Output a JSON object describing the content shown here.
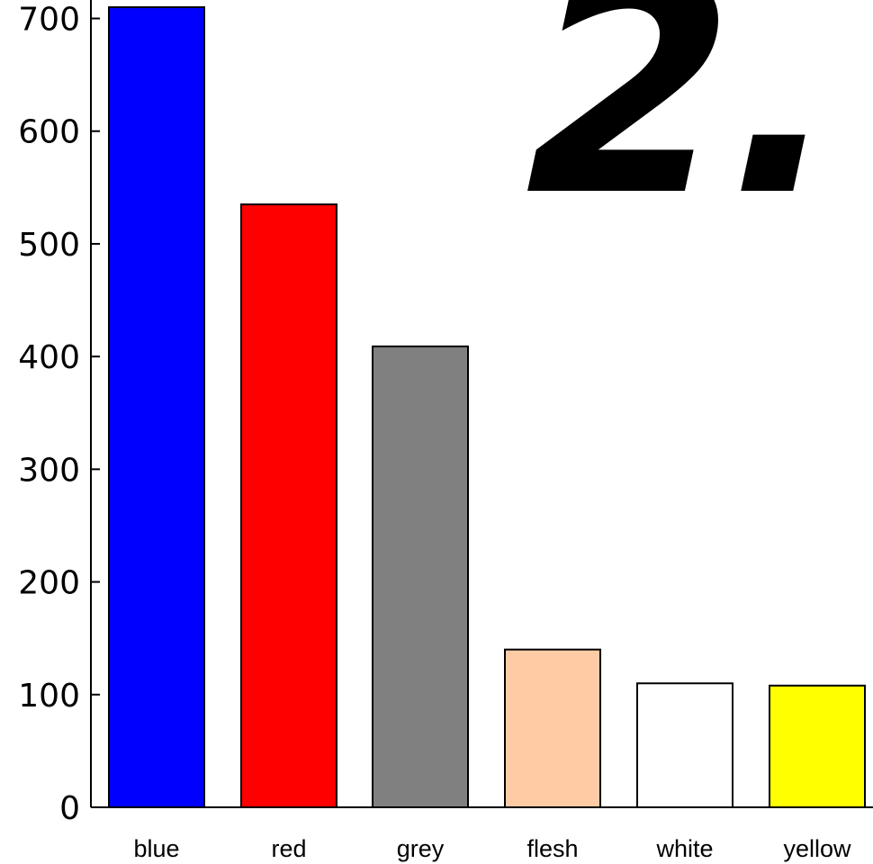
{
  "chart_data": {
    "type": "bar",
    "title": "",
    "xlabel": "",
    "ylabel": "",
    "categories": [
      "blue",
      "red",
      "grey",
      "flesh",
      "white",
      "yellow"
    ],
    "values": [
      710,
      535,
      409,
      140,
      110,
      108
    ],
    "bar_colors": [
      "#0000ff",
      "#ff0000",
      "#808080",
      "#ffcba4",
      "#ffffff",
      "#ffff00"
    ],
    "ylim": [
      0,
      710
    ],
    "yticks": [
      0,
      100,
      200,
      300,
      400,
      500,
      600,
      700
    ],
    "ytick_labels": [
      "0",
      "100",
      "200",
      "300",
      "400",
      "500",
      "600",
      "700"
    ],
    "grid": false,
    "legend": "none",
    "annotation_text": "2."
  }
}
